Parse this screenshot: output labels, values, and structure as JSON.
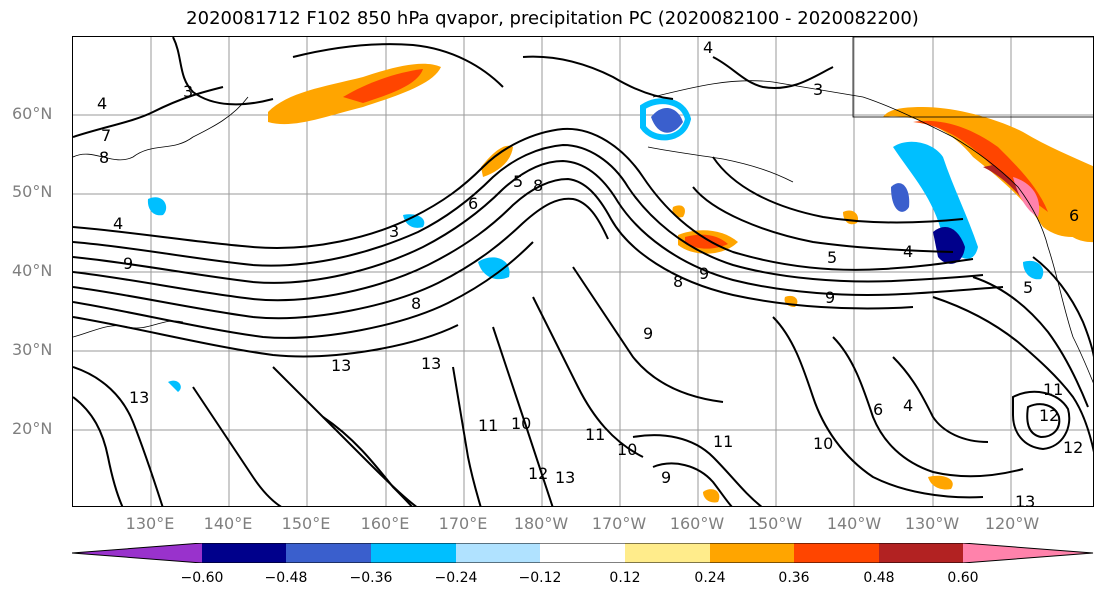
{
  "title": "2020081712 F102 850 hPa qvapor, precipitation PC (2020082100 - 2020082200)",
  "map": {
    "lat_labels": [
      "60°N",
      "50°N",
      "40°N",
      "30°N",
      "20°N"
    ],
    "lon_labels": [
      "130°E",
      "140°E",
      "150°E",
      "160°E",
      "170°E",
      "180°W",
      "170°W",
      "160°W",
      "150°W",
      "140°W",
      "130°W",
      "120°W"
    ],
    "contour_labels": [
      "4",
      "3",
      "8",
      "7",
      "4",
      "9",
      "6",
      "3",
      "5",
      "8",
      "13",
      "13",
      "11",
      "10",
      "11",
      "12",
      "13",
      "9",
      "10",
      "11",
      "10",
      "9",
      "8",
      "5",
      "9",
      "8",
      "9",
      "4",
      "6",
      "4",
      "5",
      "6",
      "11",
      "12",
      "12",
      "13",
      "13",
      "3",
      "4"
    ],
    "contour_color": "#000000"
  },
  "colorbar": {
    "colors": [
      "#9932cc",
      "#00008b",
      "#3a5fcd",
      "#00bfff",
      "#b0e2ff",
      "#ffffff",
      "#ffec8b",
      "#ffa500",
      "#ff4500",
      "#b22222",
      "#ff82ab"
    ],
    "ticks": [
      "−0.60",
      "−0.48",
      "−0.36",
      "−0.24",
      "−0.12",
      "0.12",
      "0.24",
      "0.36",
      "0.48",
      "0.60"
    ]
  }
}
